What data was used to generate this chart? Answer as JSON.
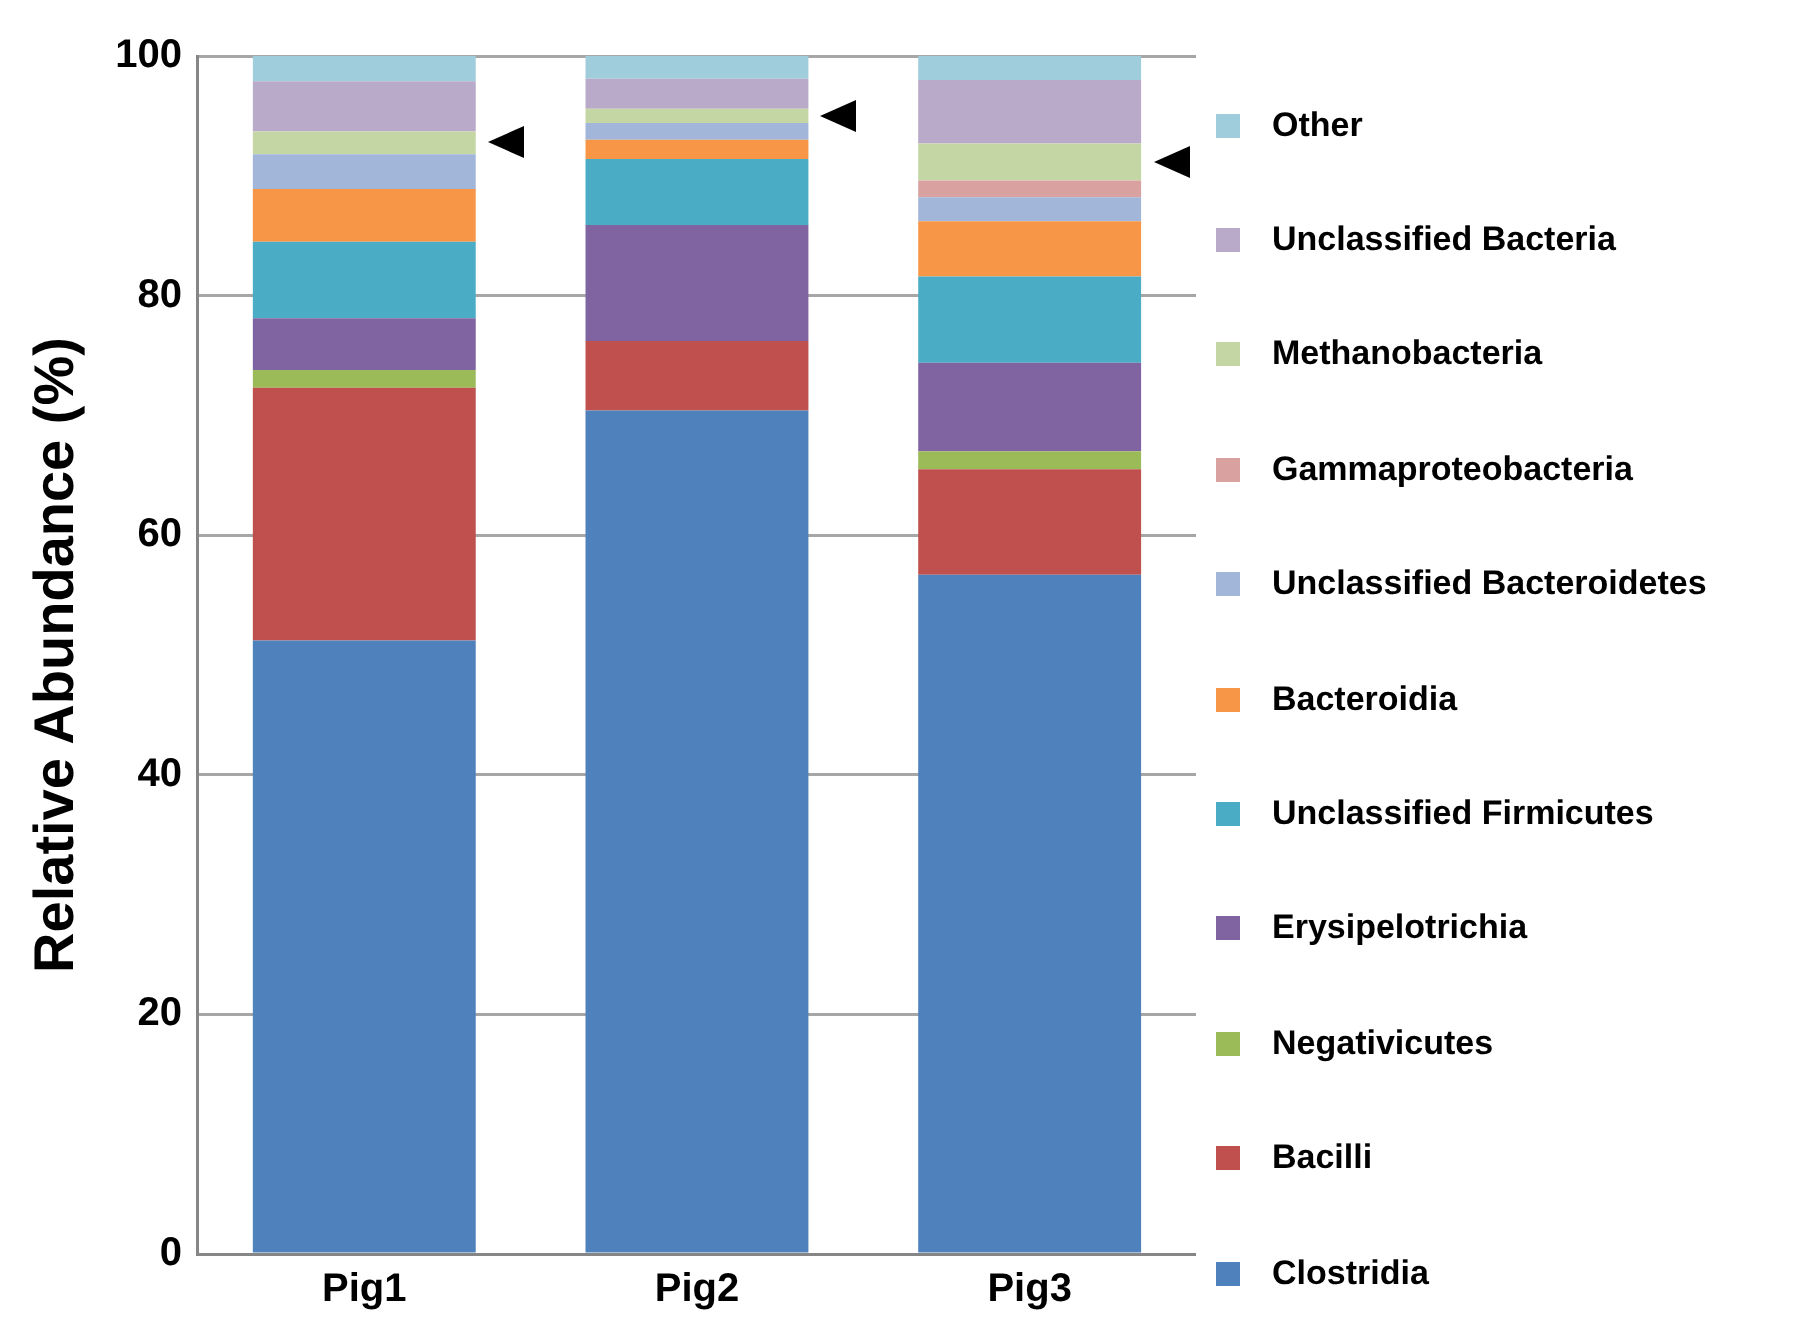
{
  "chart_data": {
    "type": "bar",
    "stacked": true,
    "ylabel": "Relative Abundance (%)",
    "categories": [
      "Pig1",
      "Pig2",
      "Pig3"
    ],
    "ylim": [
      0,
      100
    ],
    "yticks": [
      0,
      20,
      40,
      60,
      80,
      100
    ],
    "grid": "y",
    "legend": "right",
    "series": [
      {
        "name": "Clostridia",
        "color": "#4f81bd",
        "values": [
          51.2,
          70.4,
          56.7
        ]
      },
      {
        "name": "Bacilli",
        "color": "#c0504d",
        "values": [
          21.1,
          5.8,
          8.8
        ]
      },
      {
        "name": "Negativicutes",
        "color": "#9bbb59",
        "values": [
          1.5,
          0,
          1.5
        ]
      },
      {
        "name": "Erysipelotrichia",
        "color": "#8064a2",
        "values": [
          4.3,
          9.7,
          7.4
        ]
      },
      {
        "name": "Unclassified Firmicutes",
        "color": "#4bacc6",
        "values": [
          6.4,
          5.5,
          7.2
        ]
      },
      {
        "name": "Bacteroidia",
        "color": "#f79646",
        "values": [
          4.4,
          1.6,
          4.6
        ]
      },
      {
        "name": "Unclassified Bacteroidetes",
        "color": "#a2b6da",
        "values": [
          2.9,
          1.4,
          2.0
        ]
      },
      {
        "name": "Gammaproteobacteria",
        "color": "#d9a19f",
        "values": [
          0,
          0,
          1.4
        ]
      },
      {
        "name": "Methanobacteria",
        "color": "#c5d6a5",
        "values": [
          1.9,
          1.2,
          3.1
        ]
      },
      {
        "name": "Unclassified Bacteria",
        "color": "#b8aac8",
        "values": [
          4.2,
          2.5,
          5.3
        ]
      },
      {
        "name": "Other",
        "color": "#a0cddb",
        "values": [
          2.1,
          1.9,
          2.0
        ]
      }
    ]
  }
}
